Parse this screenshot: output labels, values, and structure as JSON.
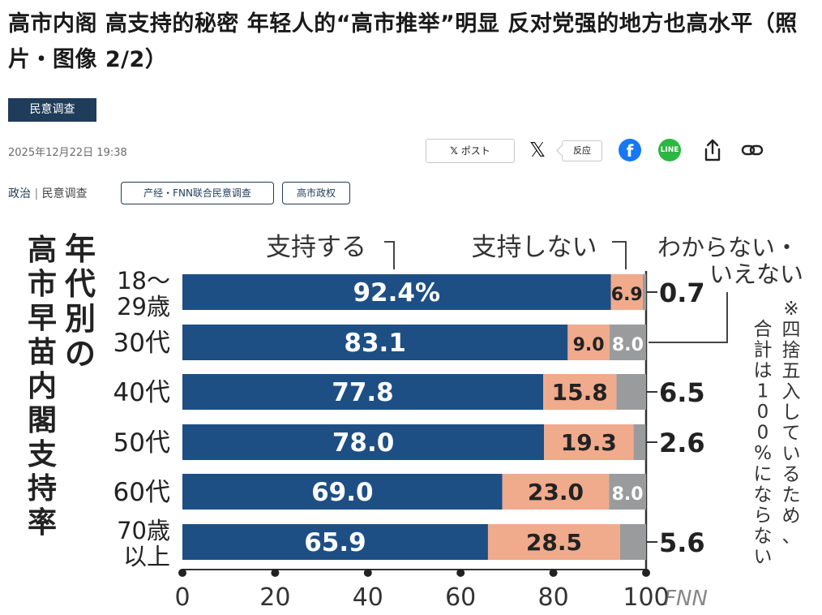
{
  "header": {
    "title": "高市内阁 高支持的秘密 年轻人的“高市推举”明显 反对党强的地方也高水平（照片・图像 2/2）",
    "category_badge": "民意调查",
    "date": "2025年12月22日 19:38"
  },
  "share": {
    "post_label": "ポスト",
    "post_icon": "x-icon",
    "reaction_label": "反应",
    "x_icon": "x-icon",
    "facebook_icon": "facebook-icon",
    "line_icon": "line-icon",
    "line_text": "LINE",
    "share_icon": "share-icon",
    "link_icon": "link-icon"
  },
  "tags": {
    "section": "政治",
    "separator": " | ",
    "subsection": "民意调查",
    "pills": [
      "产经・FNN联合民意调查",
      "高市政权"
    ]
  },
  "chart_data": {
    "type": "bar",
    "orientation": "horizontal",
    "stacked": true,
    "title": "年代別の高市早苗内閣支持率",
    "title_lines": [
      "年代別の",
      "高市早苗内閣支持率"
    ],
    "categories": [
      [
        "18～",
        "29歳"
      ],
      [
        "30代"
      ],
      [
        "40代"
      ],
      [
        "50代"
      ],
      [
        "60代"
      ],
      [
        "70歳",
        "以上"
      ]
    ],
    "series": [
      {
        "name": "支持する",
        "color": "#1d4f85",
        "values": [
          92.4,
          83.1,
          77.8,
          78.0,
          69.0,
          65.9
        ]
      },
      {
        "name": "支持しない",
        "color": "#f0aa8c",
        "values": [
          6.9,
          9.0,
          15.8,
          19.3,
          23.0,
          28.5
        ]
      },
      {
        "name": "わからない・いえない",
        "name_lines": [
          "わからない・",
          "いえない"
        ],
        "color": "#9a9b9c",
        "values": [
          0.7,
          8.0,
          6.5,
          2.6,
          8.0,
          5.6
        ]
      }
    ],
    "value_labels": [
      [
        "92.4%",
        "6.9",
        "0.7"
      ],
      [
        "83.1",
        "9.0",
        "8.0"
      ],
      [
        "77.8",
        "15.8",
        "6.5"
      ],
      [
        "78.0",
        "19.3",
        "2.6"
      ],
      [
        "69.0",
        "23.0",
        "8.0"
      ],
      [
        "65.9",
        "28.5",
        "5.6"
      ]
    ],
    "xlim": [
      0,
      100
    ],
    "xticks": [
      0,
      20,
      40,
      60,
      80,
      100
    ],
    "note": "※四捨五入しているため、合計は100%にならない",
    "watermark": "FNN"
  }
}
